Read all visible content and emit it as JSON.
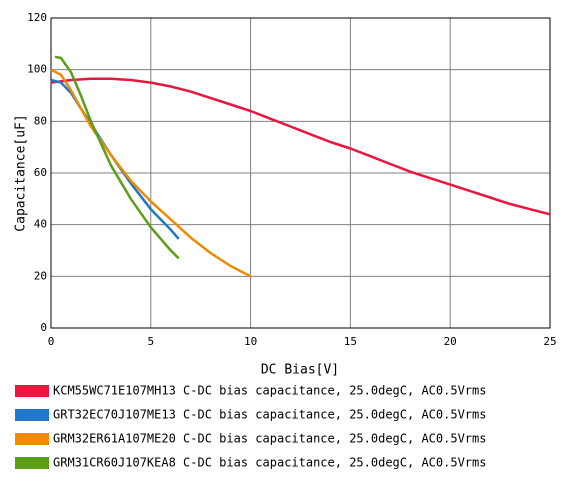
{
  "chart_data": {
    "type": "line",
    "x_label": "DC Bias[V]",
    "y_label": "Capacitance[uF]",
    "xlim": [
      0,
      25
    ],
    "xticks": [
      0,
      5,
      10,
      15,
      20,
      25
    ],
    "ylim": [
      0,
      120
    ],
    "yticks": [
      0,
      20,
      40,
      60,
      80,
      100,
      120
    ],
    "grid": true,
    "series": [
      {
        "name": "KCM55WC71E107MH13 C-DC bias capacitance, 25.0degC, AC0.5Vrms",
        "color": "#e8173f",
        "x": [
          0,
          1,
          2,
          3,
          4,
          5,
          6,
          7,
          8,
          9,
          10,
          11,
          12,
          13,
          14,
          15,
          16,
          17,
          18,
          19,
          20,
          21,
          22,
          23,
          24,
          25
        ],
        "values": [
          95,
          96,
          96.5,
          96.5,
          96,
          95,
          93.5,
          91.5,
          89,
          86.5,
          84,
          81,
          78,
          75,
          72,
          69.5,
          66.5,
          63.5,
          60.5,
          58,
          55.5,
          53,
          50.5,
          48,
          46,
          44
        ]
      },
      {
        "name": "GRT32EC70J107ME13 C-DC bias capacitance, 25.0degC, AC0.5Vrms",
        "color": "#1f78c8",
        "x": [
          0,
          0.5,
          1,
          1.5,
          2,
          3,
          4,
          5,
          6,
          6.4
        ],
        "values": [
          96,
          95,
          91,
          85,
          79,
          67,
          56,
          46,
          38,
          34.5
        ]
      },
      {
        "name": "GRM32ER61A107ME20 C-DC bias capacitance, 25.0degC, AC0.5Vrms",
        "color": "#f08a00",
        "x": [
          0,
          0.5,
          1,
          1.5,
          2,
          3,
          4,
          5,
          6,
          7,
          8,
          9,
          10
        ],
        "values": [
          100,
          98,
          92,
          85,
          78,
          67,
          57,
          49,
          42,
          35,
          29,
          24,
          20
        ]
      },
      {
        "name": "GRM31CR60J107KEA8 C-DC bias capacitance, 25.0degC, AC0.5Vrms",
        "color": "#5a9e1a",
        "x": [
          0.2,
          0.5,
          1,
          1.5,
          2,
          3,
          4,
          5,
          6,
          6.4
        ],
        "values": [
          105,
          104.5,
          99,
          90,
          80,
          63,
          50,
          39,
          30,
          27
        ]
      }
    ]
  }
}
